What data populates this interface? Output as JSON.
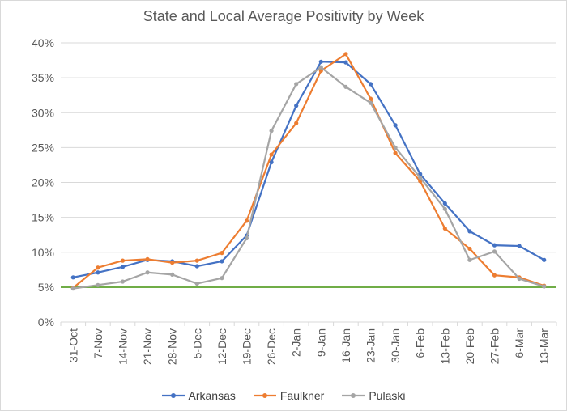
{
  "chart_data": {
    "type": "line",
    "title": "State and Local Average Positivity by Week",
    "xlabel": "",
    "ylabel": "",
    "categories": [
      "31-Oct",
      "7-Nov",
      "14-Nov",
      "21-Nov",
      "28-Nov",
      "5-Dec",
      "12-Dec",
      "19-Dec",
      "26-Dec",
      "2-Jan",
      "9-Jan",
      "16-Jan",
      "23-Jan",
      "30-Jan",
      "6-Feb",
      "13-Feb",
      "20-Feb",
      "27-Feb",
      "6-Mar",
      "13-Mar"
    ],
    "ylim": [
      0,
      0.4
    ],
    "yticks": [
      0,
      0.05,
      0.1,
      0.15,
      0.2,
      0.25,
      0.3,
      0.35,
      0.4
    ],
    "ytick_labels": [
      "0%",
      "5%",
      "10%",
      "15%",
      "20%",
      "25%",
      "30%",
      "35%",
      "40%"
    ],
    "grid": true,
    "legend_position": "bottom",
    "reference_line": {
      "value": 0.05,
      "color": "#70AD47"
    },
    "series": [
      {
        "name": "Arkansas",
        "color": "#4472C4",
        "values": [
          0.064,
          0.071,
          0.079,
          0.089,
          0.087,
          0.08,
          0.087,
          0.124,
          0.229,
          0.31,
          0.373,
          0.372,
          0.341,
          0.282,
          0.212,
          0.17,
          0.13,
          0.11,
          0.109,
          0.089
        ]
      },
      {
        "name": "Faulkner",
        "color": "#ED7D31",
        "values": [
          0.049,
          0.078,
          0.088,
          0.09,
          0.085,
          0.088,
          0.099,
          0.145,
          0.24,
          0.285,
          0.36,
          0.384,
          0.32,
          0.242,
          0.202,
          0.134,
          0.105,
          0.067,
          0.064,
          0.052
        ]
      },
      {
        "name": "Pulaski",
        "color": "#A5A5A5",
        "values": [
          0.048,
          0.053,
          0.058,
          0.071,
          0.068,
          0.055,
          0.063,
          0.12,
          0.274,
          0.341,
          0.365,
          0.337,
          0.314,
          0.25,
          0.207,
          0.162,
          0.089,
          0.101,
          0.062,
          0.051
        ]
      }
    ]
  }
}
